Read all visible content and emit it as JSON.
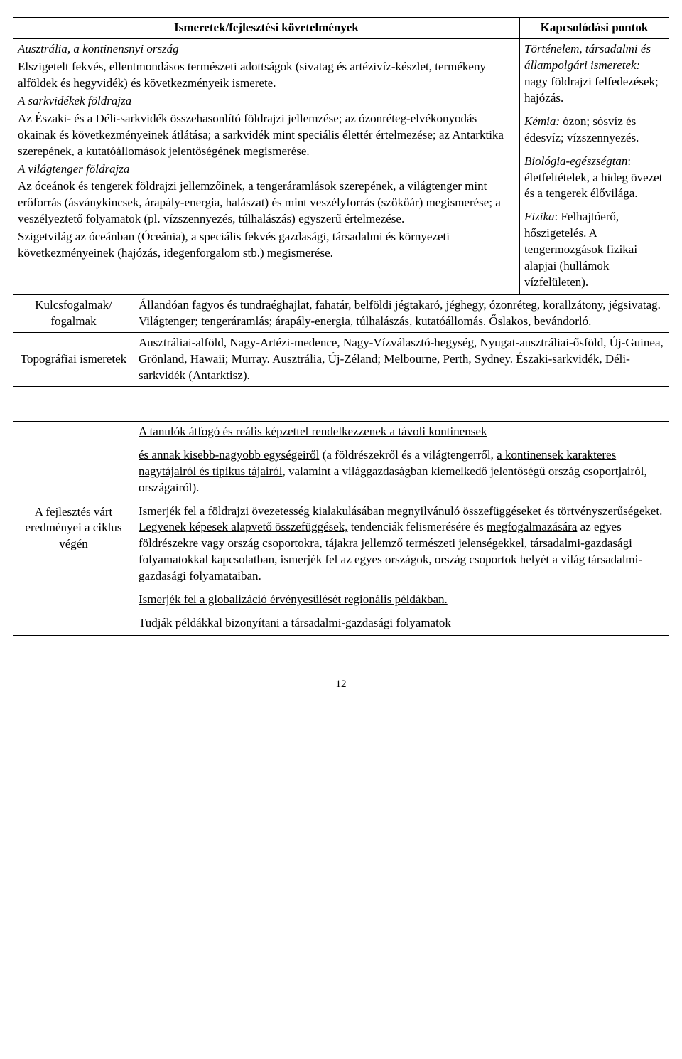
{
  "table1": {
    "headers": {
      "left": "Ismeretek/fejlesztési követelmények",
      "right": "Kapcsolódási pontok"
    },
    "body_left": {
      "s1_italic": "Ausztrália, a kontinensnyi ország",
      "s1_text": "Elszigetelt fekvés, ellentmondásos természeti adottságok (sivatag és artézivíz-készlet, termékeny alföldek és hegyvidék) és következményeik ismerete.",
      "s2_italic": "A sarkvidékek földrajza",
      "s2_text": "Az Északi- és a Déli-sarkvidék összehasonlító földrajzi jellemzése; az ózonréteg-elvékonyodás okainak és következményeinek átlátása; a sarkvidék mint speciális élettér értelmezése; az Antarktika szerepének, a kutatóállomások jelentőségének megismerése.",
      "s3_italic": "A világtenger földrajza",
      "s3_text1": "Az óceánok és tengerek földrajzi jellemzőinek, a tengeráramlások szerepének, a világtenger mint erőforrás (ásványkincsek, árapály-energia, halászat) és mint veszélyforrás (szökőár) megismerése; a veszélyeztető folyamatok (pl. vízszennyezés, túlhalászás) egyszerű értelmezése.",
      "s3_text2": "Szigetvilág az óceánban (Óceánia), a speciális fekvés gazdasági, társadalmi és környezeti következményeinek (hajózás, idegenforgalom stb.) megismerése."
    },
    "body_right": {
      "r1_italic": "Történelem, társadalmi és állampolgári ismeretek:",
      "r1_text": " nagy földrajzi felfedezések; hajózás.",
      "r2_italic": "Kémia:",
      "r2_text": " ózon; sósvíz és édesvíz; vízszennyezés.",
      "r3_italic": "Biológia-egészségtan",
      "r3_text": ": életfeltételek, a hideg övezet és a tengerek élővilága.",
      "r4_italic": "Fizika",
      "r4_text": ": Felhajtóerő, hőszigetelés. A tengermozgások fizikai alapjai (hullámok vízfelületen)."
    },
    "row_kulcs": {
      "label": "Kulcsfogalmak/ fogalmak",
      "text": "Állandóan fagyos és tundraéghajlat, fahatár, belföldi jégtakaró, jéghegy, ózonréteg, korallzátony, jégsivatag. Világtenger; tengeráramlás; árapály-energia, túlhalászás, kutatóállomás. Őslakos, bevándorló."
    },
    "row_topo": {
      "label": "Topográfiai ismeretek",
      "text": "Ausztráliai-alföld, Nagy-Artézi-medence, Nagy-Vízválasztó-hegység, Nyugat-ausztráliai-ősföld, Új-Guinea, Grönland, Hawaii; Murray. Ausztrália, Új-Zéland; Melbourne, Perth, Sydney. Északi-sarkvidék, Déli-sarkvidék (Antarktisz)."
    }
  },
  "table2": {
    "left_label": "A fejlesztés várt eredményei a ciklus végén",
    "p1_u1": "A tanulók átfogó és reális képzettel rendelkezzenek a távoli kontinensek",
    "p1_u2": "és annak kisebb-nagyobb egységeiről",
    "p1_plain2": " (a földrészekről és a világtengerről, ",
    "p1_u3": "a kontinensek karakteres nagytájairól és tipikus tájairól",
    "p1_plain3": ", valamint a világgazdaságban kiemelkedő jelentőségű ország csoportjairól, országairól).",
    "p2_u1": "Ismerjék fel a földrajzi övezetesség kialakulásában megnyilvánuló összefüggéseket",
    "p2_plain1": " és törtvényszerűségeket. ",
    "p2_u2": "Legyenek képesek alapvető összefüggések,",
    "p2_plain2": " tendenciák felismerésére és ",
    "p2_u3": "megfogalmazására",
    "p2_plain3": " az egyes földrészekre vagy ország csoportokra, ",
    "p2_u4": "tájakra jellemző természeti jelenségekkel,",
    "p2_plain4": " társadalmi-gazdasági folyamatokkal kapcsolatban, ismerjék fel az egyes országok, ország csoportok helyét a világ társadalmi-gazdasági folyamataiban.",
    "p3_u1": "Ismerjék fel a globalizáció érvényesülését regionális példákban.",
    "p4_plain": "Tudják példákkal bizonyítani a társadalmi-gazdasági folyamatok"
  },
  "pageNumber": "12"
}
